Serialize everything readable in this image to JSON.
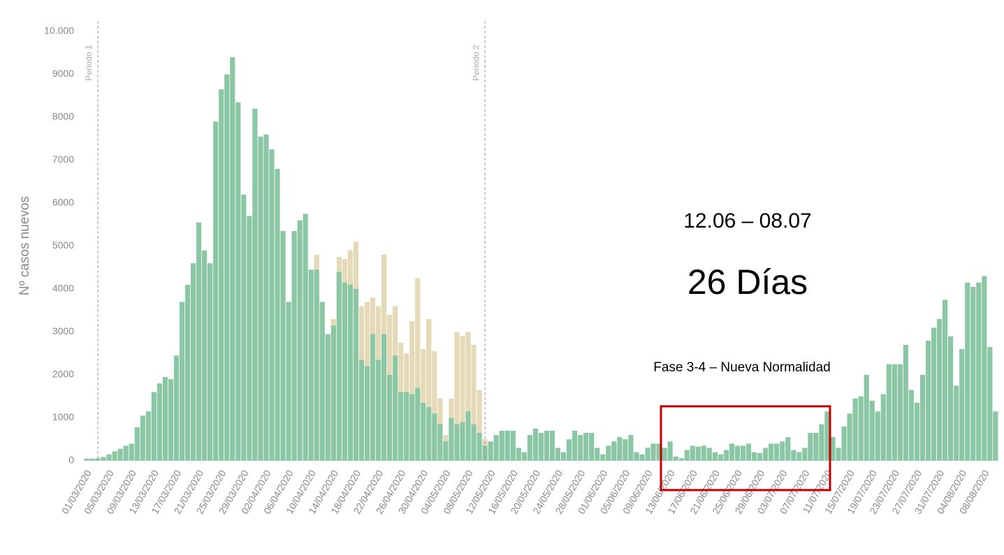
{
  "chart_data": {
    "type": "bar",
    "y_label": "Nº casos nuevos",
    "annotations": {
      "period1": "Periodo 1",
      "period2": "Periodo 2",
      "range": "12.06 – 08.07",
      "days": "26 Días",
      "phase": "Fase 3-4 – Nueva Normalidad"
    },
    "categories": [
      "01/03/2020",
      null,
      null,
      null,
      "05/03/2020",
      null,
      null,
      null,
      "09/03/2020",
      null,
      null,
      null,
      "13/03/2020",
      null,
      null,
      null,
      "17/03/2020",
      null,
      null,
      null,
      "21/03/2020",
      null,
      null,
      null,
      "25/03/2020",
      null,
      null,
      null,
      "29/03/2020",
      null,
      null,
      null,
      "02/04/2020",
      null,
      null,
      null,
      "06/04/2020",
      null,
      null,
      null,
      "10/04/2020",
      null,
      null,
      null,
      "14/04/2020",
      null,
      null,
      null,
      "18/04/2020",
      null,
      null,
      null,
      "22/04/2020",
      null,
      null,
      null,
      "26/04/2020",
      null,
      null,
      null,
      "30/04/2020",
      null,
      null,
      null,
      "04/05/2020",
      null,
      null,
      null,
      "08/05/2020",
      null,
      null,
      null,
      "12/05/2020",
      null,
      null,
      null,
      "16/05/2020",
      null,
      null,
      null,
      "20/05/2020",
      null,
      null,
      null,
      "24/05/2020",
      null,
      null,
      null,
      "28/05/2020",
      null,
      null,
      null,
      "01/06/2020",
      null,
      null,
      null,
      "05/06/2020",
      null,
      null,
      null,
      "09/06/2020",
      null,
      null,
      null,
      "13/06/2020",
      null,
      null,
      null,
      "17/06/2020",
      null,
      null,
      null,
      "21/06/2020",
      null,
      null,
      null,
      "25/06/2020",
      null,
      null,
      null,
      "29/06/2020",
      null,
      null,
      null,
      "03/07/2020",
      null,
      null,
      null,
      "07/07/2020",
      null,
      null,
      null,
      "11/07/2020",
      null,
      null,
      null,
      "15/07/2020",
      null,
      null,
      null,
      "19/07/2020",
      null,
      null,
      null,
      "23/07/2020",
      null,
      null,
      null,
      "27/07/2020",
      null,
      null,
      null,
      "31/07/2020",
      null,
      null,
      null,
      "04/08/2020",
      null,
      null,
      null,
      "08/08/2020",
      null,
      null
    ],
    "series": [
      {
        "color": "#e4dab8",
        "values": [
          null,
          null,
          null,
          null,
          null,
          null,
          null,
          null,
          null,
          null,
          null,
          null,
          null,
          null,
          null,
          null,
          null,
          null,
          null,
          null,
          null,
          null,
          null,
          null,
          null,
          null,
          null,
          null,
          null,
          null,
          null,
          null,
          null,
          null,
          null,
          null,
          null,
          null,
          null,
          null,
          null,
          4800,
          null,
          null,
          3300,
          4750,
          4700,
          4900,
          5100,
          3600,
          3700,
          3800,
          3600,
          4800,
          3400,
          3600,
          2750,
          2500,
          3250,
          4250,
          2600,
          3300,
          2550,
          1450,
          600,
          1450,
          3000,
          2900,
          3000,
          2700,
          1650,
          500,
          null,
          null,
          null,
          null,
          null,
          null,
          null,
          null,
          null,
          null,
          null,
          null,
          null,
          null,
          null,
          null,
          null,
          null,
          null,
          null,
          null,
          null,
          null,
          null,
          null,
          null,
          null,
          null,
          null,
          null,
          null,
          null,
          null,
          null,
          null,
          null,
          null,
          null,
          null,
          null,
          null,
          null,
          null,
          null,
          null,
          null,
          null,
          null,
          null,
          null,
          null,
          null,
          null,
          null,
          null,
          null,
          null,
          null,
          null,
          null,
          null,
          null,
          null,
          null,
          null,
          null,
          null,
          null,
          null,
          null,
          null,
          null,
          null,
          null,
          null,
          null,
          null,
          null,
          null,
          null,
          null,
          null,
          null,
          null,
          null,
          null,
          null,
          null,
          null,
          null,
          null
        ]
      },
      {
        "color": "#8cc7a5",
        "values": [
          50,
          50,
          60,
          90,
          150,
          220,
          280,
          350,
          400,
          780,
          1050,
          1150,
          1600,
          1800,
          1950,
          1900,
          2450,
          3700,
          4100,
          4600,
          5550,
          4900,
          4600,
          7900,
          8650,
          9000,
          9400,
          8350,
          6200,
          5700,
          8200,
          7550,
          7600,
          7250,
          6800,
          5350,
          3700,
          5350,
          5600,
          5750,
          4450,
          4450,
          3700,
          2950,
          3150,
          4400,
          4150,
          4100,
          4000,
          2350,
          2200,
          2950,
          2350,
          2950,
          2000,
          2450,
          1600,
          1600,
          1550,
          1700,
          1350,
          1250,
          1100,
          850,
          450,
          1000,
          850,
          900,
          1150,
          850,
          650,
          350,
          450,
          600,
          700,
          700,
          700,
          300,
          200,
          600,
          750,
          650,
          700,
          700,
          300,
          200,
          500,
          700,
          600,
          650,
          650,
          300,
          150,
          350,
          450,
          550,
          500,
          600,
          200,
          150,
          300,
          400,
          400,
          300,
          450,
          100,
          60,
          250,
          350,
          330,
          350,
          300,
          200,
          150,
          250,
          400,
          350,
          350,
          400,
          200,
          180,
          300,
          400,
          400,
          450,
          550,
          250,
          200,
          300,
          650,
          650,
          850,
          1150,
          550,
          300,
          800,
          1100,
          1450,
          1500,
          2000,
          1400,
          1150,
          1550,
          2250,
          2250,
          2250,
          2700,
          1650,
          1350,
          2000,
          2800,
          3100,
          3300,
          3750,
          2900,
          1750,
          2600,
          4150,
          4050,
          4150,
          4300,
          2650,
          1150
        ]
      }
    ],
    "ylim": [
      0,
      10000
    ],
    "yticks": [
      0,
      1000,
      2000,
      3000,
      4000,
      5000,
      6000,
      7000,
      8000,
      9000,
      {
        "value": 10000,
        "label": "10.000"
      }
    ],
    "grid": false
  }
}
